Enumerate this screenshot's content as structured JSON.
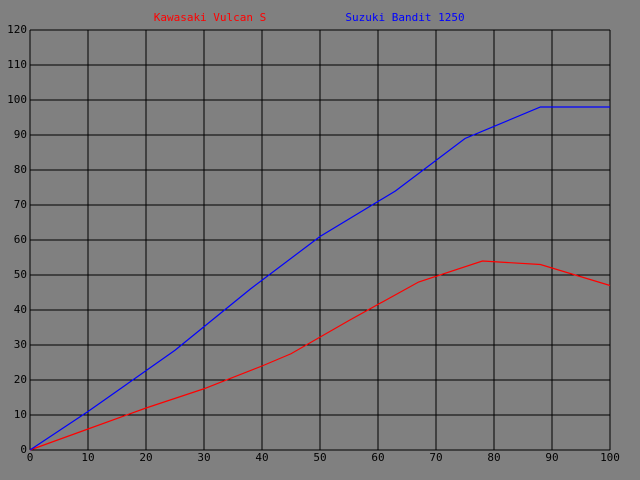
{
  "chart_data": {
    "type": "line",
    "series": [
      {
        "name": "Kawasaki Vulcan S",
        "color": "#ff0000",
        "x": [
          0,
          10,
          20,
          30,
          40,
          45,
          55,
          67,
          78,
          88,
          100
        ],
        "values": [
          0,
          6,
          12,
          17.5,
          24,
          27.5,
          37,
          48,
          54,
          53,
          47
        ]
      },
      {
        "name": "Suzuki Bandit 1250",
        "color": "#0000ff",
        "x": [
          0,
          10,
          25,
          38,
          50,
          63,
          75,
          88,
          100
        ],
        "values": [
          0,
          11,
          28.5,
          46,
          61,
          74,
          89,
          98,
          98
        ]
      }
    ],
    "xlim": [
      0,
      100
    ],
    "xticks": [
      0,
      10,
      20,
      30,
      40,
      50,
      60,
      70,
      80,
      90,
      100
    ],
    "ylim": [
      0,
      120
    ],
    "yticks": [
      0,
      10,
      20,
      30,
      40,
      50,
      60,
      70,
      80,
      90,
      100,
      110,
      120
    ],
    "grid": true
  }
}
